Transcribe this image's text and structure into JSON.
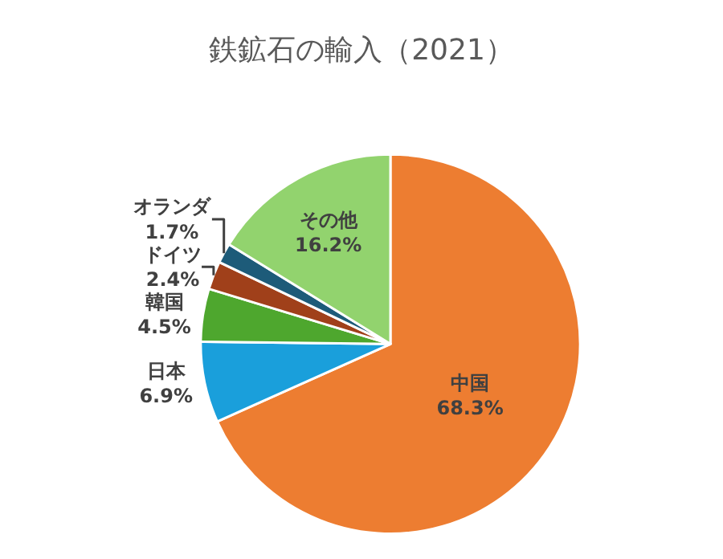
{
  "chart_data": {
    "type": "pie",
    "title": "鉄鉱石の輸入（2021）",
    "categories": [
      "中国",
      "日本",
      "韓国",
      "ドイツ",
      "オランダ",
      "その他"
    ],
    "values": [
      68.3,
      6.9,
      4.5,
      2.4,
      1.7,
      16.2
    ],
    "value_labels": [
      "68.3%",
      "6.9%",
      "4.5%",
      "2.4%",
      "1.7%",
      "16.2%"
    ],
    "colors": [
      "#ed7d31",
      "#1a9fdb",
      "#4ea72e",
      "#a0401a",
      "#1d5b79",
      "#92d36e"
    ],
    "legend": false
  }
}
